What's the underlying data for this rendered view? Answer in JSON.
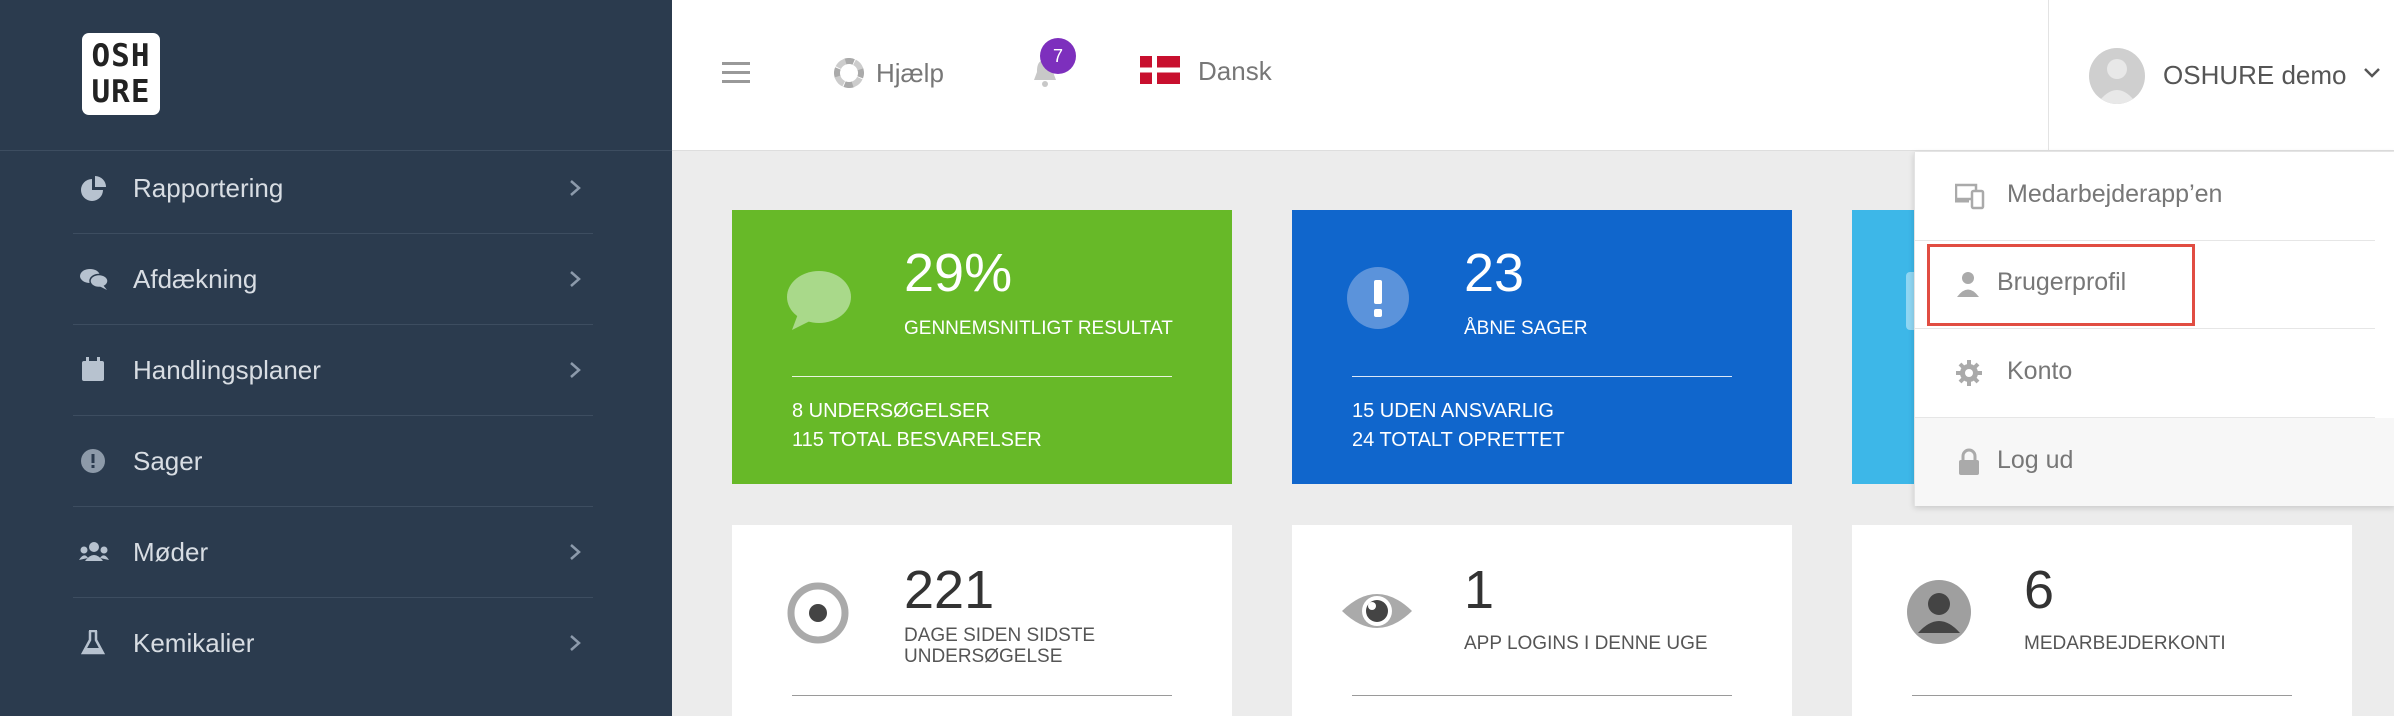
{
  "sidebar": {
    "logo": {
      "line1": "OSH",
      "line2": "URE"
    },
    "items": [
      {
        "label": "Rapportering",
        "icon": "pie-chart-icon",
        "has_chevron": true
      },
      {
        "label": "Afdækning",
        "icon": "chat-bubbles-icon",
        "has_chevron": true
      },
      {
        "label": "Handlingsplaner",
        "icon": "calendar-icon",
        "has_chevron": true
      },
      {
        "label": "Sager",
        "icon": "exclamation-circle-icon",
        "has_chevron": false
      },
      {
        "label": "Møder",
        "icon": "users-icon",
        "has_chevron": true
      },
      {
        "label": "Kemikalier",
        "icon": "flask-icon",
        "has_chevron": true
      }
    ]
  },
  "topbar": {
    "help_label": "Hjælp",
    "notifications_count": "7",
    "language_label": "Dansk",
    "user_name": "OSHURE demo"
  },
  "cards": [
    {
      "value": "29%",
      "label": "GENNEMSNITLIGT RESULTAT",
      "sub1": "8 UNDERSØGELSER",
      "sub2": "115 TOTAL BESVARELSER",
      "color": "#67b928"
    },
    {
      "value": "23",
      "label": "ÅBNE SAGER",
      "sub1": "15 UDEN ANSVARLIG",
      "sub2": "24 TOTALT OPRETTET",
      "color": "#1066cc"
    },
    {
      "color": "#3db7e8"
    }
  ],
  "stat_cards": [
    {
      "value": "221",
      "label_line1": "DAGE SIDEN SIDSTE",
      "label_line2": "UNDERSØGELSE"
    },
    {
      "value": "1",
      "label": "APP LOGINS I DENNE UGE"
    },
    {
      "value": "6",
      "label": "MEDARBEJDERKONTI"
    }
  ],
  "user_menu": {
    "items": [
      {
        "label": "Medarbejderapp’en",
        "icon": "devices-icon"
      },
      {
        "label": "Brugerprofil",
        "icon": "user-icon"
      },
      {
        "label": "Konto",
        "icon": "gear-icon"
      },
      {
        "label": "Log ud",
        "icon": "lock-icon"
      }
    ],
    "highlight_color": "#e14d42"
  }
}
